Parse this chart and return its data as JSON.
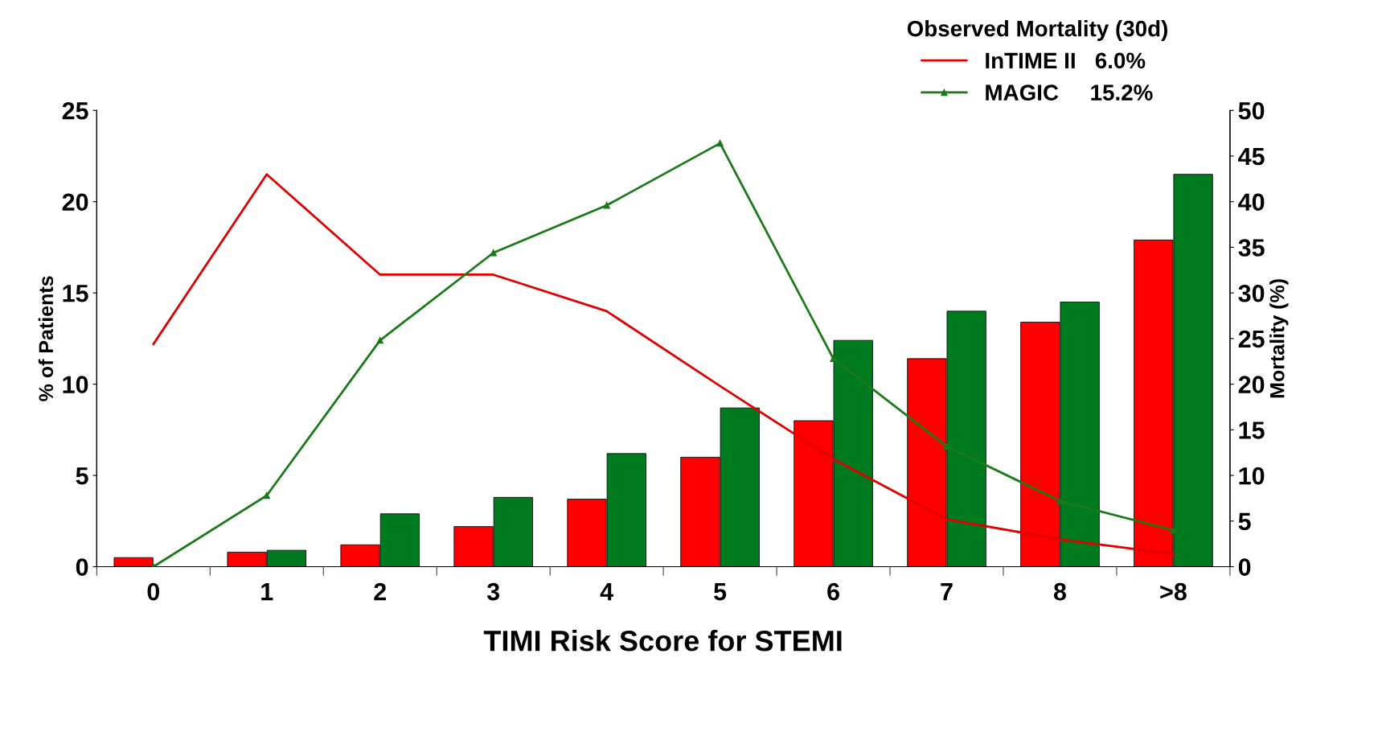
{
  "chart_data": {
    "type": "bar",
    "xlabel": "TIMI Risk Score for STEMI",
    "ylabel": "% of Patients",
    "y2label": "Mortality (%)",
    "legend_title": "Observed Mortality (30d)",
    "legend": "top right",
    "grid": false,
    "categories": [
      "0",
      "1",
      "2",
      "3",
      "4",
      "5",
      "6",
      "7",
      "8",
      ">8"
    ],
    "ylim": [
      0,
      25
    ],
    "yticks": [
      0,
      5,
      10,
      15,
      20,
      25
    ],
    "y2lim": [
      0,
      50
    ],
    "y2ticks": [
      0,
      5,
      10,
      15,
      20,
      25,
      30,
      35,
      40,
      45,
      50
    ],
    "series": [
      {
        "axis": "y2",
        "color": "#ff0000",
        "values": [
          1,
          1.6,
          2.4,
          4.4,
          7.4,
          12,
          16,
          22.8,
          26.8,
          35.8
        ]
      },
      {
        "axis": "y2",
        "color": "#007a1f",
        "values": [
          null,
          1.8,
          5.8,
          7.6,
          12.4,
          17.4,
          24.8,
          28,
          29,
          43
        ]
      },
      {
        "type": "line",
        "axis": "y",
        "name": "InTIME II   6.0%",
        "color": "#e00000",
        "marker": "none",
        "line_style": "solid",
        "values": [
          12.2,
          21.5,
          16,
          16,
          14,
          9.9,
          5.9,
          2.6,
          1.5,
          0.7
        ]
      },
      {
        "type": "line",
        "axis": "y",
        "name": "MAGIC     15.2%",
        "color": "#1a7a1a",
        "marker": "triangle",
        "line_style": "solid",
        "values": [
          0,
          3.9,
          12.4,
          17.2,
          19.8,
          23.2,
          11.4,
          6.6,
          3.6,
          2
        ]
      }
    ]
  }
}
